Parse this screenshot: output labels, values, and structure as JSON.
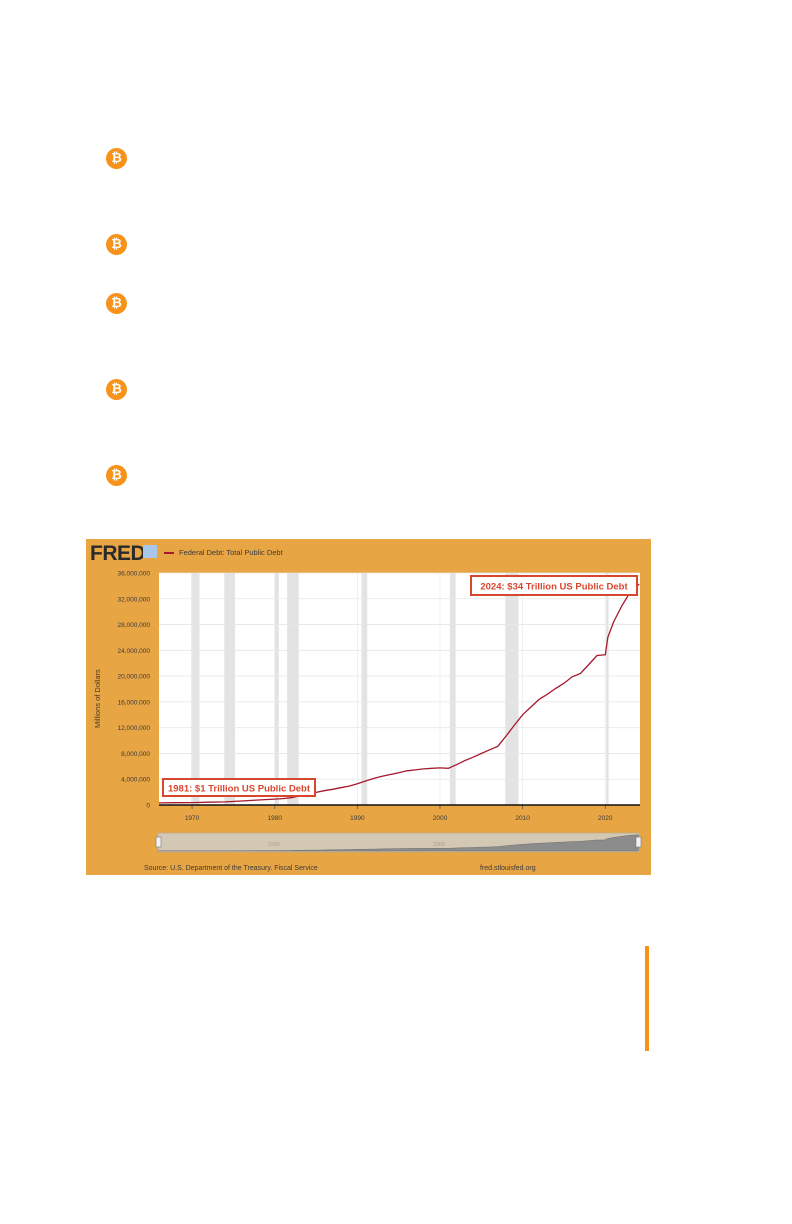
{
  "bullets": [
    "₿",
    "₿",
    "₿",
    "₿",
    "₿"
  ],
  "header": {
    "logo": "FRED"
  },
  "chart_data": {
    "type": "line",
    "title": "",
    "legend": "Federal Debt: Total Public Debt",
    "ylabel": "Millions of Dollars",
    "xlabel": "",
    "xlim": [
      1966,
      2024.2
    ],
    "ylim": [
      0,
      36000000
    ],
    "yticks": [
      0,
      4000000,
      8000000,
      12000000,
      16000000,
      20000000,
      24000000,
      28000000,
      32000000,
      36000000
    ],
    "yticklabels": [
      "0",
      "4,000,000",
      "8,000,000",
      "12,000,000",
      "16,000,000",
      "20,000,000",
      "24,000,000",
      "28,000,000",
      "32,000,000",
      "36,000,000"
    ],
    "xticks": [
      1970,
      1980,
      1990,
      2000,
      2010,
      2020
    ],
    "xticklabels": [
      "1970",
      "1980",
      "1990",
      "2000",
      "2010",
      "2020"
    ],
    "grid": true,
    "line_color": "#a6192e",
    "recessions": [
      [
        1969.9,
        1970.9
      ],
      [
        1973.9,
        1975.2
      ],
      [
        1980.0,
        1980.5
      ],
      [
        1981.5,
        1982.9
      ],
      [
        1990.5,
        1991.2
      ],
      [
        2001.2,
        2001.9
      ],
      [
        2007.9,
        2009.5
      ],
      [
        2020.1,
        2020.4
      ]
    ],
    "series": [
      {
        "name": "Federal Debt: Total Public Debt",
        "x": [
          1966,
          1968,
          1970,
          1972,
          1974,
          1976,
          1978,
          1980,
          1981,
          1982,
          1983,
          1984,
          1985,
          1986,
          1987,
          1988,
          1989,
          1990,
          1991,
          1992,
          1993,
          1994,
          1995,
          1996,
          1997,
          1998,
          1999,
          2000,
          2001,
          2002,
          2003,
          2004,
          2005,
          2006,
          2007,
          2008,
          2009,
          2010,
          2011,
          2012,
          2013,
          2014,
          2015,
          2016,
          2017,
          2018,
          2019,
          2020,
          2020.3,
          2020.6,
          2021,
          2022,
          2023,
          2024.1
        ],
        "y": [
          320000,
          350000,
          380000,
          430000,
          480000,
          620000,
          770000,
          910000,
          1000000,
          1140000,
          1410000,
          1660000,
          1950000,
          2220000,
          2440000,
          2680000,
          2940000,
          3300000,
          3730000,
          4120000,
          4450000,
          4740000,
          5010000,
          5300000,
          5450000,
          5600000,
          5690000,
          5760000,
          5700000,
          6260000,
          6890000,
          7420000,
          7990000,
          8570000,
          9110000,
          10700000,
          12400000,
          14000000,
          15200000,
          16400000,
          17200000,
          18100000,
          18900000,
          19900000,
          20400000,
          21800000,
          23200000,
          23300000,
          26000000,
          27000000,
          28400000,
          30900000,
          33000000,
          34300000
        ]
      }
    ],
    "annotations": [
      {
        "text": "1981: $1 Trillion US Public Debt",
        "color": "#d9462e"
      },
      {
        "text": "2024: $34 Trillion US Public Debt",
        "color": "#d9462e"
      }
    ],
    "range_selector": {
      "xticklabels": [
        "1980",
        "2000"
      ]
    }
  },
  "footer": {
    "source": "Source: U.S. Department of the Treasury. Fiscal Service",
    "site": "fred.stlouisfed.org"
  }
}
